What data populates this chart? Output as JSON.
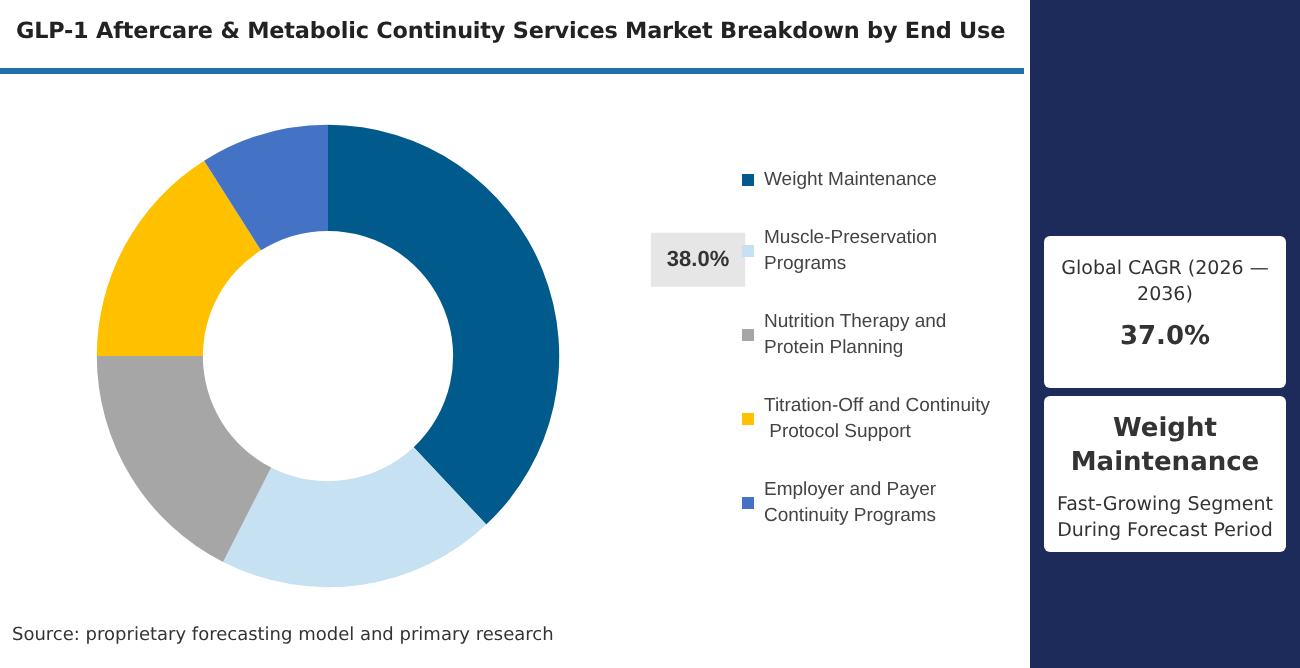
{
  "chart_data": {
    "type": "donut",
    "title": "GLP-1 Aftercare & Metabolic Continuity Services Market Breakdown by End Use",
    "categories": [
      "Weight Maintenance",
      "Muscle-Preservation Programs",
      "Nutrition Therapy and Protein Planning",
      "Titration-Off and Continuity Protocol Support",
      "Employer and Payer Continuity Programs"
    ],
    "values": [
      38,
      19.5,
      17.5,
      16,
      9
    ],
    "colors": [
      "#005a8c",
      "#c5e1f2",
      "#a6a6a6",
      "#ffc000",
      "#4472c4"
    ],
    "value_labels": [
      "38.0%",
      null,
      null,
      null,
      null
    ],
    "legend": "right",
    "annotations": [
      "Source: proprietary forecasting model and primary research",
      "Global CAGR (2026 — 2036)",
      "37.0%",
      "Weight Maintenance",
      "Fast-Growing Segment During Forecast Period"
    ]
  }
}
